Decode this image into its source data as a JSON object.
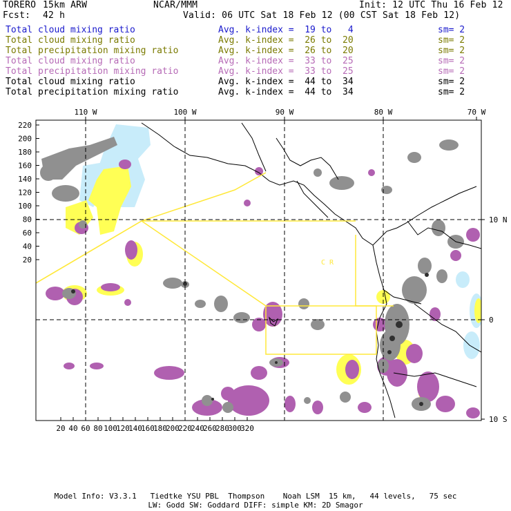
{
  "header": {
    "model": "TORERO",
    "resolution": "15km ARW",
    "center": "NCAR/MMM",
    "init": "Init: 12 UTC Thu 16 Feb 12",
    "fcst_label": "Fcst:",
    "fcst_value": "42 h",
    "valid": "Valid: 06 UTC Sat 18 Feb 12 (00 CST Sat 18 Feb 12)"
  },
  "legend": [
    {
      "name": "Total cloud mixing ratio",
      "kindex": "Avg. k-index =  19 to   4",
      "sm": "sm= 2",
      "color": "#1a1acc"
    },
    {
      "name": "Total cloud mixing ratio",
      "kindex": "Avg. k-index =  26 to  20",
      "sm": "sm= 2",
      "color": "#7a7a00"
    },
    {
      "name": "Total precipitation mixing ratio",
      "kindex": "Avg. k-index =  26 to  20",
      "sm": "sm= 2",
      "color": "#7a7a00"
    },
    {
      "name": "Total cloud mixing ratio",
      "kindex": "Avg. k-index =  33 to  25",
      "sm": "sm= 2",
      "color": "#b66ab6"
    },
    {
      "name": "Total precipitation mixing ratio",
      "kindex": "Avg. k-index =  33 to  25",
      "sm": "sm= 2",
      "color": "#b66ab6"
    },
    {
      "name": "Total cloud mixing ratio",
      "kindex": "Avg. k-index =  44 to  34",
      "sm": "sm= 2",
      "color": "#000000"
    },
    {
      "name": "Total precipitation mixing ratio",
      "kindex": "Avg. k-index =  44 to  34",
      "sm": "sm= 2",
      "color": "#000000"
    }
  ],
  "map": {
    "top_lon_labels": [
      "110 W",
      "100 W",
      "90 W",
      "80 W",
      "70 W"
    ],
    "right_lat_labels": [
      "10 N",
      "0",
      "10 S"
    ],
    "y_grid_labels": [
      "220",
      "200",
      "180",
      "160",
      "140",
      "120",
      "100",
      "80",
      "60",
      "40",
      "20"
    ],
    "x_grid_labels": [
      "20",
      "40",
      "60",
      "80",
      "100",
      "120",
      "140",
      "160",
      "180",
      "200",
      "220",
      "240",
      "260",
      "280",
      "300",
      "320"
    ],
    "region_label": "C R",
    "colors": {
      "light_blue": "#c8ecfa",
      "yellow": "#ffff55",
      "purple": "#b060b0",
      "gray": "#909090",
      "dark": "#303030",
      "outline_yellow": "#ffe83a"
    }
  },
  "footer": {
    "line1": "Model Info: V3.3.1   Tiedtke YSU PBL  Thompson    Noah LSM  15 km,   44 levels,   75 sec",
    "line2": "LW: Godd SW: Goddard DIFF: simple KM: 2D Smagor"
  }
}
